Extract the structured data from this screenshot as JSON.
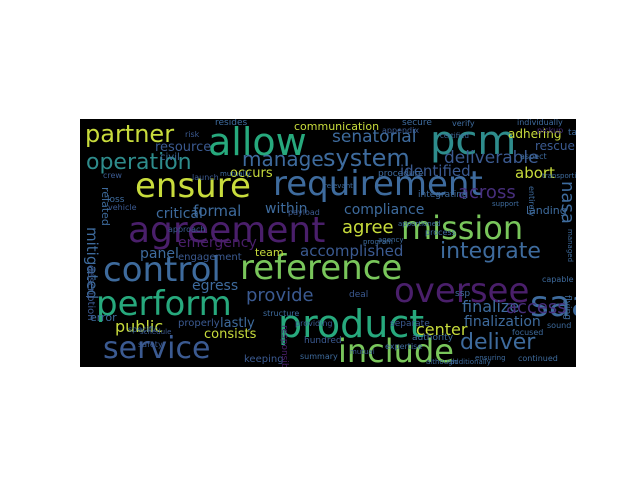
{
  "palette": {
    "background": "#000000",
    "dark_purple": "#4a1f6b",
    "purple": "#472e7c",
    "blue": "#3b5a91",
    "steel": "#3e6b9d",
    "teal": "#2e8c8c",
    "green": "#27a97d",
    "lime": "#79c65b",
    "yellow": "#c8dc3c"
  },
  "words": [
    {
      "text": "allow",
      "color": "#27a97d"
    },
    {
      "text": "pcm",
      "color": "#2e8c8c"
    },
    {
      "text": "partner",
      "color": "#c8dc3c"
    },
    {
      "text": "resource",
      "color": "#3b5a91"
    },
    {
      "text": "ensure",
      "color": "#c8dc3c"
    },
    {
      "text": "requirement",
      "color": "#3e6b9d"
    },
    {
      "text": "operation",
      "color": "#2e8c8c"
    },
    {
      "text": "manage",
      "color": "#3e6b9d"
    },
    {
      "text": "system",
      "color": "#3e6b9d"
    },
    {
      "text": "senatorial",
      "color": "#3e6b9d"
    },
    {
      "text": "deliverable",
      "color": "#3b5a91"
    },
    {
      "text": "agreement",
      "color": "#4a1f6b"
    },
    {
      "text": "mission",
      "color": "#79c65b"
    },
    {
      "text": "control",
      "color": "#3e6b9d"
    },
    {
      "text": "reference",
      "color": "#79c65b"
    },
    {
      "text": "integrate",
      "color": "#3e6b9d"
    },
    {
      "text": "perform",
      "color": "#27a97d"
    },
    {
      "text": "oversee",
      "color": "#4a1f6b"
    },
    {
      "text": "product",
      "color": "#27a97d"
    },
    {
      "text": "service",
      "color": "#3b5a91"
    },
    {
      "text": "include",
      "color": "#79c65b"
    },
    {
      "text": "saa",
      "color": "#3e6b9d"
    },
    {
      "text": "deliver",
      "color": "#3e6b9d"
    },
    {
      "text": "accomplished",
      "color": "#3b5a91"
    },
    {
      "text": "provide",
      "color": "#3b5a91"
    },
    {
      "text": "finalize",
      "color": "#3e6b9d"
    },
    {
      "text": "center",
      "color": "#c8dc3c"
    },
    {
      "text": "public",
      "color": "#c8dc3c"
    },
    {
      "text": "critical",
      "color": "#3e6b9d"
    },
    {
      "text": "formal",
      "color": "#3e6b9d"
    },
    {
      "text": "emergency",
      "color": "#4a1f6b"
    },
    {
      "text": "compliance",
      "color": "#3e6b9d"
    },
    {
      "text": "agree",
      "color": "#c8dc3c"
    },
    {
      "text": "identified",
      "color": "#3b5a91"
    },
    {
      "text": "abort",
      "color": "#c8dc3c"
    },
    {
      "text": "across",
      "color": "#472e7c"
    },
    {
      "text": "within",
      "color": "#3e6b9d"
    },
    {
      "text": "panel",
      "color": "#3e6b9d"
    },
    {
      "text": "egress",
      "color": "#3e6b9d"
    },
    {
      "text": "lastly",
      "color": "#3e6b9d"
    },
    {
      "text": "consists",
      "color": "#c8dc3c"
    },
    {
      "text": "finalization",
      "color": "#3e6b9d"
    },
    {
      "text": "access",
      "color": "#472e7c"
    },
    {
      "text": "nasa",
      "color": "#3e6b9d"
    },
    {
      "text": "occurs",
      "color": "#c8dc3c"
    },
    {
      "text": "communication",
      "color": "#c8dc3c"
    },
    {
      "text": "adhering",
      "color": "#c8dc3c"
    },
    {
      "text": "rescue",
      "color": "#3b5a91"
    },
    {
      "text": "landing",
      "color": "#3e6b9d"
    },
    {
      "text": "mitigated",
      "color": "#3e6b9d"
    },
    {
      "text": "related",
      "color": "#3e6b9d"
    },
    {
      "text": "error",
      "color": "#3e6b9d"
    },
    {
      "text": "team",
      "color": "#c8dc3c"
    },
    {
      "text": "secure",
      "color": "#3e6b9d"
    },
    {
      "text": "resides",
      "color": "#3e6b9d"
    },
    {
      "text": "civil",
      "color": "#3e6b9d"
    },
    {
      "text": "procedure",
      "color": "#3e6b9d"
    },
    {
      "text": "verify",
      "color": "#3e6b9d"
    },
    {
      "text": "individually",
      "color": "#3e6b9d"
    },
    {
      "text": "integrating",
      "color": "#3e6b9d"
    },
    {
      "text": "engagement",
      "color": "#3b5a91"
    },
    {
      "text": "specific",
      "color": "#3e6b9d"
    },
    {
      "text": "properly",
      "color": "#3b5a91"
    },
    {
      "text": "keeping",
      "color": "#3b5a91"
    },
    {
      "text": "hundred",
      "color": "#3b5a91"
    },
    {
      "text": "separate",
      "color": "#3b5a91"
    },
    {
      "text": "deal",
      "color": "#3b5a91"
    },
    {
      "text": "authority",
      "color": "#3e6b9d"
    },
    {
      "text": "focused",
      "color": "#3e6b9d"
    },
    {
      "text": "continued",
      "color": "#3e6b9d"
    },
    {
      "text": "ssp",
      "color": "#3e6b9d"
    },
    {
      "text": "appendix",
      "color": "#3b5a91"
    },
    {
      "text": "aspect",
      "color": "#3e6b9d"
    },
    {
      "text": "structure",
      "color": "#3e6b9d"
    },
    {
      "text": "description",
      "color": "#3b5a91"
    },
    {
      "text": "approach",
      "color": "#3b5a91"
    },
    {
      "text": "summary",
      "color": "#3e6b9d"
    },
    {
      "text": "expertise",
      "color": "#3e6b9d"
    },
    {
      "text": "responsible",
      "color": "#4a1f6b"
    },
    {
      "text": "capable",
      "color": "#3e6b9d"
    },
    {
      "text": "flying",
      "color": "#3e6b9d"
    },
    {
      "text": "sound",
      "color": "#3e6b9d"
    },
    {
      "text": "task",
      "color": "#3e6b9d"
    },
    {
      "text": "entirely",
      "color": "#3e6b9d"
    },
    {
      "text": "payload",
      "color": "#3b5a91"
    },
    {
      "text": "providing",
      "color": "#3b5a91"
    },
    {
      "text": "crew",
      "color": "#3b5a91"
    },
    {
      "text": "vehicle",
      "color": "#3b5a91"
    },
    {
      "text": "launch",
      "color": "#3b5a91"
    },
    {
      "text": "loss",
      "color": "#3e6b9d"
    },
    {
      "text": "schedule",
      "color": "#3b5a91"
    },
    {
      "text": "mutual",
      "color": "#3b5a91"
    },
    {
      "text": "ensuring",
      "color": "#3e6b9d"
    },
    {
      "text": "additionally",
      "color": "#3e6b9d"
    },
    {
      "text": "transporting",
      "color": "#3e6b9d"
    },
    {
      "text": "managed",
      "color": "#3e6b9d"
    },
    {
      "text": "mutually",
      "color": "#3e6b9d"
    },
    {
      "text": "certified",
      "color": "#3e6b9d"
    },
    {
      "text": "apportioned",
      "color": "#3e6b9d"
    },
    {
      "text": "program",
      "color": "#3e6b9d"
    },
    {
      "text": "risk",
      "color": "#3b5a91"
    },
    {
      "text": "safety",
      "color": "#3b5a91"
    },
    {
      "text": "process",
      "color": "#3e6b9d"
    },
    {
      "text": "pickup",
      "color": "#472e7c"
    },
    {
      "text": "agency",
      "color": "#3e6b9d"
    },
    {
      "text": "although",
      "color": "#3e6b9d"
    },
    {
      "text": "relevant",
      "color": "#3e6b9d"
    },
    {
      "text": "support",
      "color": "#3e6b9d"
    }
  ]
}
